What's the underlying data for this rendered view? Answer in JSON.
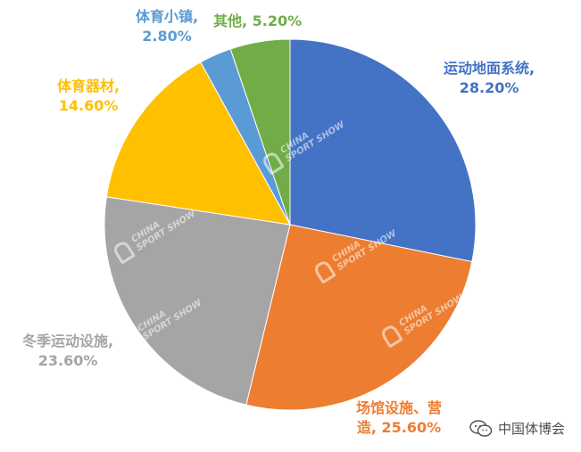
{
  "chart_data": {
    "type": "pie",
    "start_angle_deg": 0,
    "direction": "clockwise",
    "slices": [
      {
        "name": "运动地面系统",
        "value": 28.2,
        "label_lines": [
          "运动地面系统,",
          "28.20%"
        ],
        "color": "#4472C4"
      },
      {
        "name": "场馆设施、营造",
        "value": 25.6,
        "label_lines": [
          "场馆设施、营",
          "造, 25.60%"
        ],
        "color": "#ED7D31"
      },
      {
        "name": "冬季运动设施",
        "value": 23.6,
        "label_lines": [
          "冬季运动设施,",
          "23.60%"
        ],
        "color": "#A5A5A5"
      },
      {
        "name": "体育器材",
        "value": 14.6,
        "label_lines": [
          "体育器材,",
          "14.60%"
        ],
        "color": "#FFC000"
      },
      {
        "name": "体育小镇",
        "value": 2.8,
        "label_lines": [
          "体育小镇,",
          "2.80%"
        ],
        "color": "#5B9BD5"
      },
      {
        "name": "其他",
        "value": 5.2,
        "label_lines": [
          "其他, 5.20%"
        ],
        "color": "#70AD47"
      }
    ],
    "legend": "none"
  },
  "watermark": {
    "text_line1": "CHINA",
    "text_line2": "SPORT SHOW"
  },
  "footer": {
    "account": "中国体博会",
    "icon": "wechat-icon"
  }
}
